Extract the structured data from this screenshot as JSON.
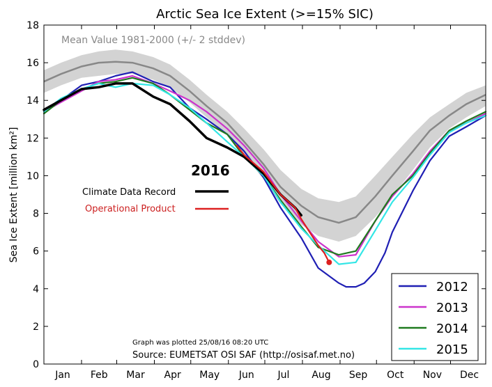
{
  "chart_data": {
    "type": "line",
    "title": "Arctic Sea Ice Extent (>=15% SIC)",
    "ylabel": "Sea Ice Extent [million km²]",
    "xlabel": "",
    "ylim": [
      0,
      18
    ],
    "yticks": [
      0,
      2,
      4,
      6,
      8,
      10,
      12,
      14,
      16,
      18
    ],
    "months": [
      "Jan",
      "Feb",
      "Mar",
      "Apr",
      "May",
      "Jun",
      "Jul",
      "Aug",
      "Sep",
      "Oct",
      "Nov",
      "Dec"
    ],
    "x_unit_note": "x values are day of year",
    "grid": false,
    "mean": {
      "label": "Mean Value 1981-2000 (+/- 2 stddev)",
      "color": "#888888",
      "band_color": "#d3d3d3",
      "x": [
        1,
        15,
        32,
        46,
        60,
        74,
        91,
        105,
        121,
        135,
        152,
        166,
        182,
        196,
        213,
        227,
        244,
        258,
        274,
        288,
        305,
        319,
        335,
        349,
        365
      ],
      "values": [
        15.0,
        15.4,
        15.8,
        16.0,
        16.05,
        16.0,
        15.7,
        15.3,
        14.5,
        13.7,
        12.8,
        11.8,
        10.6,
        9.4,
        8.4,
        7.8,
        7.5,
        7.8,
        8.9,
        10.0,
        11.3,
        12.4,
        13.2,
        13.8,
        14.3
      ],
      "upper": [
        15.6,
        16.0,
        16.4,
        16.6,
        16.7,
        16.6,
        16.3,
        15.9,
        15.1,
        14.3,
        13.4,
        12.5,
        11.4,
        10.3,
        9.3,
        8.8,
        8.6,
        8.9,
        10.0,
        11.0,
        12.2,
        13.1,
        13.8,
        14.4,
        14.8
      ],
      "lower": [
        14.4,
        14.8,
        15.2,
        15.3,
        15.4,
        15.4,
        15.1,
        14.7,
        13.9,
        13.1,
        12.2,
        11.1,
        9.8,
        8.5,
        7.4,
        6.8,
        6.5,
        6.8,
        7.8,
        8.9,
        10.3,
        11.5,
        12.5,
        13.1,
        13.7
      ]
    },
    "series": [
      {
        "name": "2012",
        "color": "#1f1fb4",
        "x": [
          1,
          15,
          32,
          46,
          60,
          74,
          91,
          105,
          121,
          135,
          152,
          166,
          182,
          196,
          213,
          227,
          244,
          250,
          258,
          265,
          274,
          282,
          288,
          305,
          319,
          335,
          349,
          365
        ],
        "values": [
          13.4,
          14.0,
          14.8,
          15.0,
          15.3,
          15.5,
          15.0,
          14.7,
          13.6,
          13.0,
          12.2,
          11.3,
          9.9,
          8.3,
          6.7,
          5.1,
          4.3,
          4.1,
          4.1,
          4.3,
          4.9,
          5.9,
          7.0,
          9.2,
          10.8,
          12.1,
          12.6,
          13.2
        ]
      },
      {
        "name": "2013",
        "color": "#cc33cc",
        "x": [
          1,
          15,
          32,
          46,
          60,
          74,
          91,
          105,
          121,
          135,
          152,
          166,
          182,
          196,
          213,
          227,
          244,
          258,
          274,
          288,
          305,
          319,
          335,
          349,
          365
        ],
        "values": [
          13.4,
          13.9,
          14.5,
          15.0,
          15.1,
          15.3,
          14.9,
          14.5,
          14.0,
          13.4,
          12.5,
          11.6,
          10.4,
          9.0,
          7.6,
          6.5,
          5.7,
          5.8,
          7.6,
          8.9,
          10.1,
          11.3,
          12.4,
          12.8,
          13.3
        ]
      },
      {
        "name": "2014",
        "color": "#1f7a1f",
        "x": [
          1,
          15,
          32,
          46,
          60,
          74,
          91,
          105,
          121,
          135,
          152,
          166,
          182,
          196,
          213,
          227,
          244,
          258,
          274,
          288,
          305,
          319,
          335,
          349,
          365
        ],
        "values": [
          13.3,
          14.0,
          14.6,
          14.9,
          15.0,
          15.2,
          14.9,
          14.3,
          13.5,
          12.8,
          12.2,
          11.0,
          10.0,
          8.7,
          7.3,
          6.2,
          5.8,
          6.0,
          7.6,
          9.0,
          10.0,
          11.2,
          12.4,
          12.9,
          13.4
        ]
      },
      {
        "name": "2015",
        "color": "#33e6e6",
        "x": [
          1,
          15,
          32,
          46,
          60,
          74,
          91,
          105,
          121,
          135,
          152,
          166,
          182,
          196,
          213,
          227,
          244,
          258,
          274,
          288,
          305,
          319,
          335,
          349,
          365
        ],
        "values": [
          13.4,
          14.1,
          14.6,
          14.9,
          14.7,
          14.9,
          14.8,
          14.3,
          13.6,
          12.8,
          11.8,
          11.0,
          10.0,
          8.6,
          7.2,
          6.3,
          5.3,
          5.4,
          7.1,
          8.6,
          9.9,
          11.1,
          12.3,
          12.8,
          13.2
        ]
      },
      {
        "name": "Climate Data Record",
        "color": "#000000",
        "x": [
          1,
          15,
          32,
          46,
          60,
          74,
          91,
          105,
          121,
          135,
          152,
          166,
          182,
          196,
          208,
          213
        ],
        "values": [
          13.5,
          14.0,
          14.6,
          14.7,
          14.9,
          14.9,
          14.2,
          13.8,
          12.9,
          12.0,
          11.5,
          11.0,
          10.1,
          9.0,
          8.3,
          7.9
        ]
      },
      {
        "name": "Operational Product",
        "color": "#dd2020",
        "x": [
          160,
          166,
          182,
          196,
          208,
          213,
          220,
          227,
          232,
          236
        ],
        "values": [
          11.6,
          11.1,
          10.2,
          9.0,
          8.3,
          7.7,
          7.0,
          6.3,
          5.9,
          5.4
        ]
      }
    ],
    "endpoint": {
      "x": 236,
      "value": 5.4,
      "color": "#dd2020"
    },
    "annotation_block": {
      "year": "2016",
      "cdr_label": "Climate Data Record",
      "op_label": "Operational Product",
      "cdr_color": "#000000",
      "op_color": "#dd2020"
    },
    "legend": {
      "placement": "bottom-right",
      "entries": [
        {
          "label": "2012",
          "color": "#1f1fb4"
        },
        {
          "label": "2013",
          "color": "#cc33cc"
        },
        {
          "label": "2014",
          "color": "#1f7a1f"
        },
        {
          "label": "2015",
          "color": "#33e6e6"
        }
      ]
    },
    "footer": {
      "plotted": "Graph was plotted 25/08/16 08:20 UTC",
      "source": "Source: EUMETSAT OSI SAF (http://osisaf.met.no)"
    }
  }
}
